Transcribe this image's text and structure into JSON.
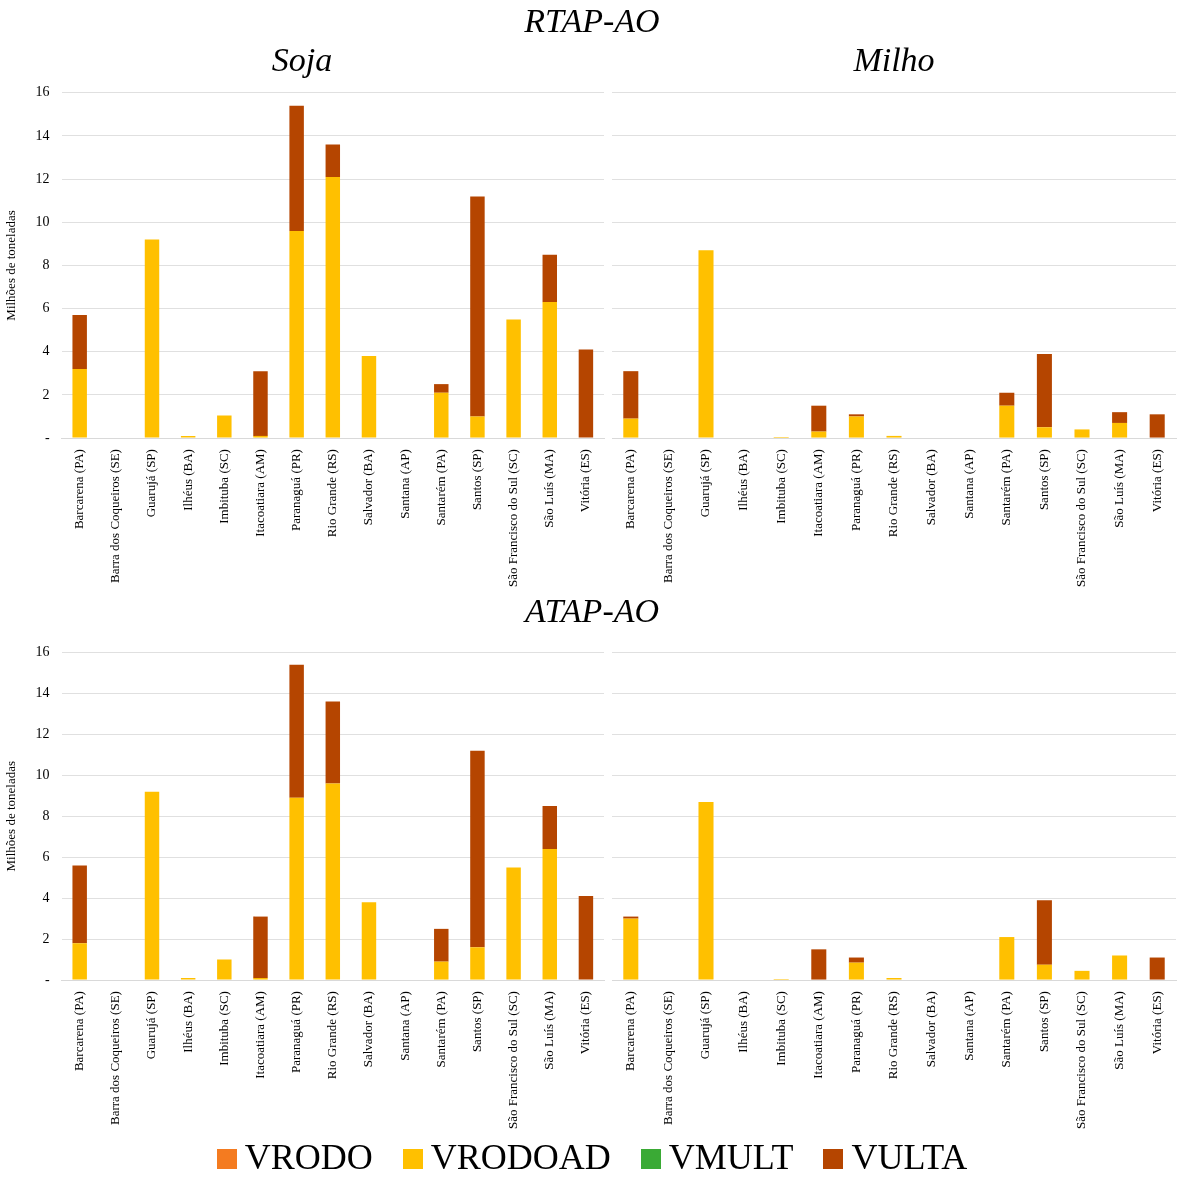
{
  "chart_data": [
    {
      "type": "bar",
      "title": "Soja",
      "ylabel": "Milhões de toneladas",
      "annotations": [
        "RTAP-AO"
      ],
      "stacked": true,
      "grid": "y",
      "categories": [
        "Barcarena (PA)",
        "Barra dos Coqueiros (SE)",
        "Guarujá (SP)",
        "Ilhéus (BA)",
        "Imbituba (SC)",
        "Itacoatiara (AM)",
        "Paranaguá (PR)",
        "Rio Grande (RS)",
        "Salvador (BA)",
        "Santana (AP)",
        "Santarém (PA)",
        "Santos (SP)",
        "São Francisco do Sul (SC)",
        "São Luís (MA)",
        "Vitória (ES)"
      ],
      "ylim": [
        0,
        16
      ],
      "yticks": [
        {
          "value": 0,
          "label": "-"
        },
        2,
        4,
        6,
        8,
        10,
        12,
        14,
        16
      ],
      "series": [
        {
          "color": "#f47b20",
          "values": [
            0,
            0,
            0,
            0,
            0,
            0,
            0,
            0,
            0,
            0,
            0,
            0,
            0,
            0,
            0
          ]
        },
        {
          "color": "#ffc000",
          "values": [
            3.2,
            0,
            9.2,
            0.1,
            1.05,
            0.1,
            9.6,
            12.1,
            3.8,
            0,
            2.1,
            1.0,
            5.5,
            6.3,
            0
          ]
        },
        {
          "color": "#3aaa35",
          "values": [
            0,
            0,
            0,
            0,
            0,
            0,
            0,
            0,
            0,
            0,
            0,
            0,
            0,
            0,
            0
          ]
        },
        {
          "color": "#b54500",
          "values": [
            2.5,
            0,
            0,
            0,
            0,
            3.0,
            5.8,
            1.5,
            0,
            0,
            0.4,
            10.2,
            0,
            2.2,
            4.1
          ]
        }
      ]
    },
    {
      "type": "bar",
      "title": "Milho",
      "stacked": true,
      "grid": "y",
      "tick_labels": "x",
      "categories": [
        "Barcarena (PA)",
        "Barra dos Coqueiros (SE)",
        "Guarujá (SP)",
        "Ilhéus (BA)",
        "Imbituba (SC)",
        "Itacoatiara (AM)",
        "Paranaguá (PR)",
        "Rio Grande (RS)",
        "Salvador (BA)",
        "Santana (AP)",
        "Santarém (PA)",
        "Santos (SP)",
        "São Francisco do Sul (SC)",
        "São Luís (MA)",
        "Vitória (ES)"
      ],
      "ylim": [
        0,
        16
      ],
      "yticks": [
        0,
        2,
        4,
        6,
        8,
        10,
        12,
        14,
        16
      ],
      "series": [
        {
          "color": "#f47b20",
          "values": [
            0,
            0,
            0,
            0,
            0,
            0,
            0,
            0,
            0,
            0,
            0,
            0,
            0,
            0,
            0
          ]
        },
        {
          "color": "#ffc000",
          "values": [
            0.9,
            0,
            8.7,
            0,
            0.05,
            0.3,
            1.0,
            0.1,
            0,
            0,
            1.5,
            0.5,
            0.4,
            0.7,
            0
          ]
        },
        {
          "color": "#3aaa35",
          "values": [
            0,
            0,
            0,
            0,
            0,
            0,
            0,
            0,
            0,
            0,
            0,
            0,
            0,
            0,
            0
          ]
        },
        {
          "color": "#b54500",
          "values": [
            2.2,
            0,
            0,
            0,
            0,
            1.2,
            0.1,
            0,
            0,
            0,
            0.6,
            3.4,
            0,
            0.5,
            1.1
          ]
        }
      ]
    },
    {
      "type": "bar",
      "ylabel": "Milhões de toneladas",
      "annotations": [
        "ATAP-AO"
      ],
      "stacked": true,
      "grid": "y",
      "categories": [
        "Barcarena (PA)",
        "Barra dos Coqueiros (SE)",
        "Guarujá (SP)",
        "Ilhéus (BA)",
        "Imbituba (SC)",
        "Itacoatiara (AM)",
        "Paranaguá (PR)",
        "Rio Grande (RS)",
        "Salvador (BA)",
        "Santana (AP)",
        "Santarém (PA)",
        "Santos (SP)",
        "São Francisco do Sul (SC)",
        "São Luís (MA)",
        "Vitória (ES)"
      ],
      "ylim": [
        0,
        16
      ],
      "yticks": [
        {
          "value": 0,
          "label": "-"
        },
        2,
        4,
        6,
        8,
        10,
        12,
        14,
        16
      ],
      "series": [
        {
          "color": "#f47b20",
          "values": [
            0,
            0,
            0,
            0,
            0,
            0,
            0,
            0,
            0,
            0,
            0,
            0,
            0,
            0,
            0
          ]
        },
        {
          "color": "#ffc000",
          "values": [
            1.8,
            0,
            9.2,
            0.1,
            1.0,
            0.1,
            8.9,
            9.6,
            3.8,
            0,
            0.9,
            1.6,
            5.5,
            6.4,
            0
          ]
        },
        {
          "color": "#3aaa35",
          "values": [
            0,
            0,
            0,
            0,
            0,
            0,
            0,
            0,
            0,
            0,
            0,
            0,
            0,
            0,
            0
          ]
        },
        {
          "color": "#b54500",
          "values": [
            3.8,
            0,
            0,
            0,
            0,
            3.0,
            6.5,
            4.0,
            0,
            0,
            1.6,
            9.6,
            0,
            2.1,
            4.1
          ]
        }
      ]
    },
    {
      "type": "bar",
      "stacked": true,
      "grid": "y",
      "legend": "bottom",
      "tick_labels": "x",
      "categories": [
        "Barcarena (PA)",
        "Barra dos Coqueiros (SE)",
        "Guarujá (SP)",
        "Ilhéus (BA)",
        "Imbituba (SC)",
        "Itacoatiara (AM)",
        "Paranaguá (PR)",
        "Rio Grande (RS)",
        "Salvador (BA)",
        "Santana (AP)",
        "Santarém (PA)",
        "Santos (SP)",
        "São Francisco do Sul (SC)",
        "São Luís (MA)",
        "Vitória (ES)"
      ],
      "ylim": [
        0,
        16
      ],
      "yticks": [
        0,
        2,
        4,
        6,
        8,
        10,
        12,
        14,
        16
      ],
      "series": [
        {
          "name": "VRODO",
          "color": "#f47b20",
          "values": [
            0,
            0,
            0,
            0,
            0,
            0,
            0,
            0,
            0,
            0,
            0,
            0,
            0,
            0,
            0
          ]
        },
        {
          "name": "VRODOAD",
          "color": "#ffc000",
          "values": [
            3.0,
            0,
            8.7,
            0,
            0.05,
            0,
            0.85,
            0.1,
            0,
            0,
            2.1,
            0.75,
            0.45,
            1.2,
            0
          ]
        },
        {
          "name": "VMULT",
          "color": "#3aaa35",
          "values": [
            0,
            0,
            0,
            0,
            0,
            0,
            0,
            0,
            0,
            0,
            0,
            0,
            0,
            0,
            0
          ]
        },
        {
          "name": "VULTA",
          "color": "#b54500",
          "values": [
            0.1,
            0,
            0,
            0,
            0,
            1.5,
            0.25,
            0,
            0,
            0,
            0,
            3.15,
            0,
            0,
            1.1
          ]
        }
      ]
    }
  ]
}
